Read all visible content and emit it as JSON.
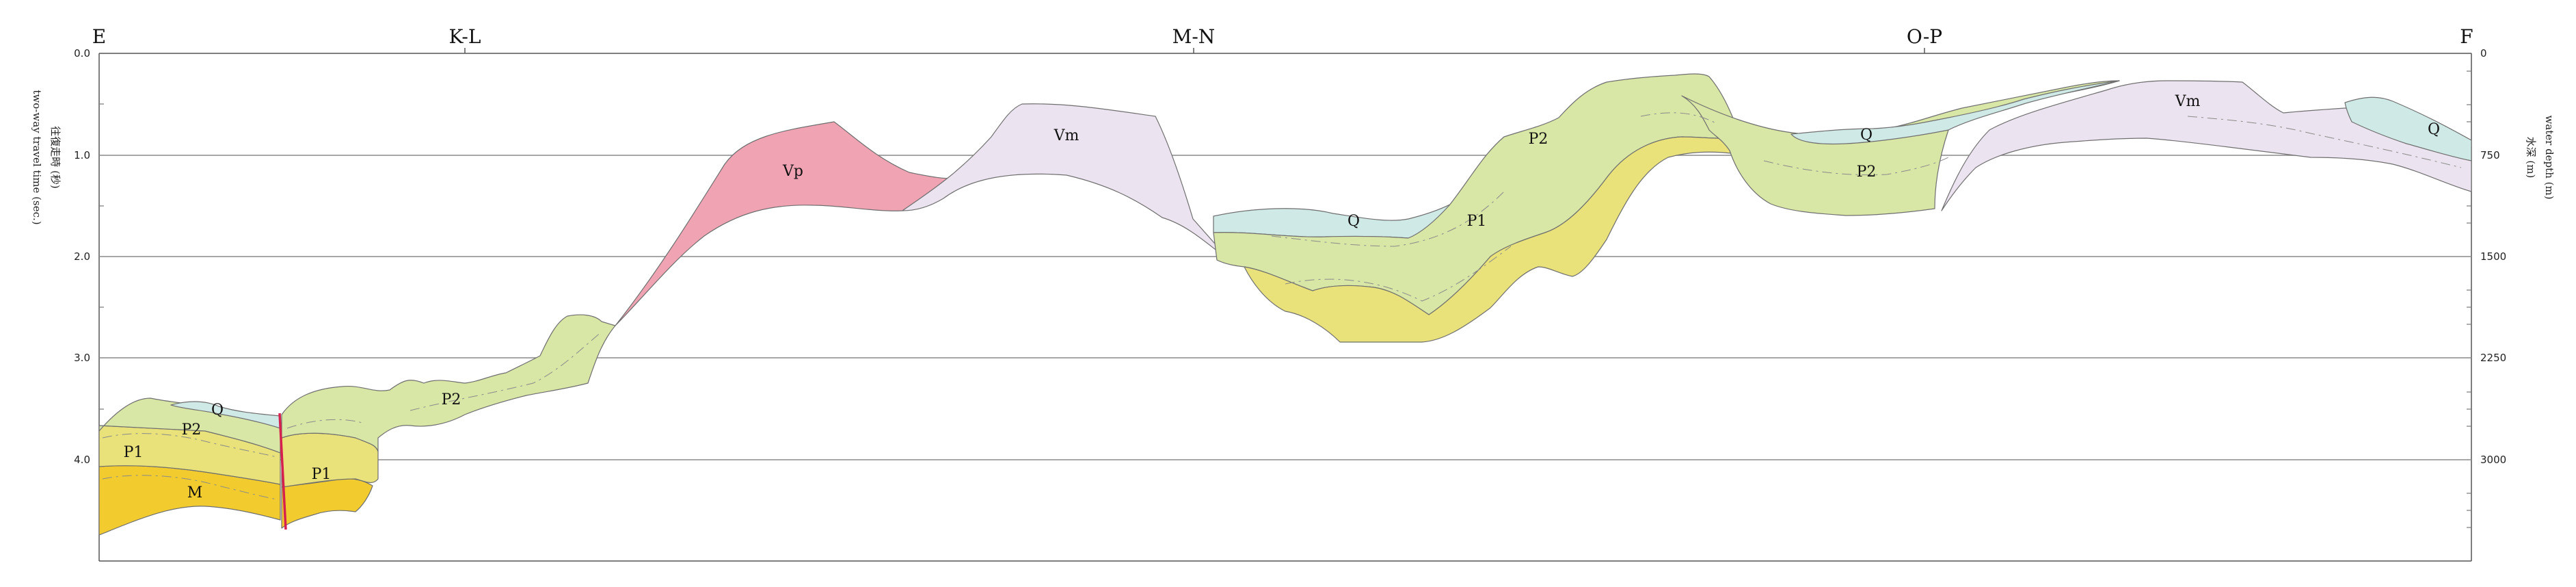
{
  "section_markers": [
    {
      "label": "E"
    },
    {
      "label": "K-L"
    },
    {
      "label": "M-N"
    },
    {
      "label": "O-P"
    },
    {
      "label": "F"
    }
  ],
  "left_axis": {
    "title_cn": "往復走時 (秒)",
    "title_en": "two-way travel time (sec.)",
    "ticks": [
      "0.0",
      "1.0",
      "2.0",
      "3.0",
      "4.0"
    ]
  },
  "right_axis": {
    "title_cn": "水深 (m)",
    "title_en": "water depth (m)",
    "ticks": [
      "0",
      "750",
      "1500",
      "2250",
      "3000"
    ]
  },
  "units": [
    {
      "label": "Q"
    },
    {
      "label": "P2"
    },
    {
      "label": "P1"
    },
    {
      "label": "M"
    },
    {
      "label": "P1"
    },
    {
      "label": "P2"
    },
    {
      "label": "Vp"
    },
    {
      "label": "Vm"
    },
    {
      "label": "Q"
    },
    {
      "label": "P1"
    },
    {
      "label": "P2"
    },
    {
      "label": "Q"
    },
    {
      "label": "P2"
    },
    {
      "label": "Vm"
    },
    {
      "label": "Q"
    }
  ],
  "colors": {
    "Q": "#cfe9e6",
    "P2": "#d8e6a6",
    "P1": "#e9e27a",
    "M": "#f2cc2e",
    "Vp": "#efa3b3",
    "Vm": "#ece3f0",
    "fault": "#d6204e"
  }
}
